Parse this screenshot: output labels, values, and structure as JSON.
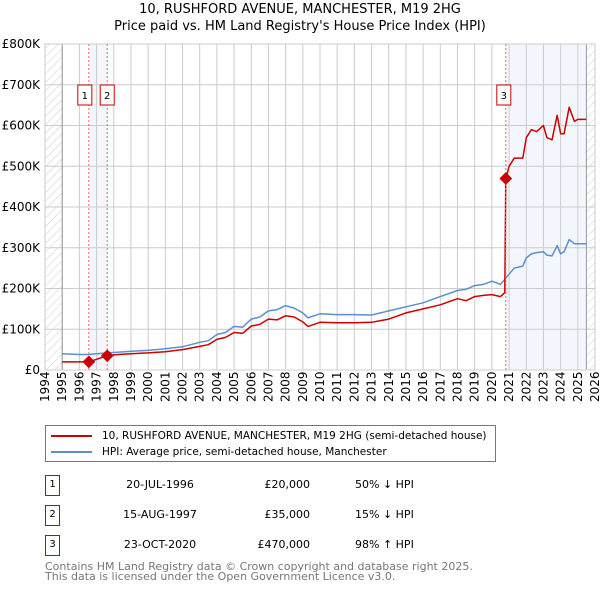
{
  "chart_data": {
    "type": "line",
    "title": "10, RUSHFORD AVENUE, MANCHESTER, M19 2HG",
    "subtitle": "Price paid vs. HM Land Registry's House Price Index (HPI)",
    "xlim": [
      1994,
      2026
    ],
    "ylim": [
      0,
      800000
    ],
    "x_ticks": [
      "1994",
      "1995",
      "1996",
      "1997",
      "1998",
      "1999",
      "2000",
      "2001",
      "2002",
      "2003",
      "2004",
      "2005",
      "2006",
      "2007",
      "2008",
      "2009",
      "2010",
      "2011",
      "2012",
      "2013",
      "2014",
      "2015",
      "2016",
      "2017",
      "2018",
      "2019",
      "2020",
      "2021",
      "2022",
      "2023",
      "2024",
      "2025",
      "2026"
    ],
    "y_ticks": [
      {
        "v": 0,
        "label": "£0"
      },
      {
        "v": 100000,
        "label": "£100K"
      },
      {
        "v": 200000,
        "label": "£200K"
      },
      {
        "v": 300000,
        "label": "£300K"
      },
      {
        "v": 400000,
        "label": "£400K"
      },
      {
        "v": 500000,
        "label": "£500K"
      },
      {
        "v": 600000,
        "label": "£600K"
      },
      {
        "v": 700000,
        "label": "£700K"
      },
      {
        "v": 800000,
        "label": "£800K"
      }
    ],
    "grid": true,
    "data_range": [
      1995,
      2025.5
    ],
    "series": [
      {
        "name": "10, RUSHFORD AVENUE, MANCHESTER, M19 2HG (semi-detached house)",
        "color": "#cc0000",
        "x": [
          1995,
          1996.55,
          1997.62,
          1998,
          1999,
          2000,
          2001,
          2002,
          2003,
          2003.5,
          2004,
          2004.5,
          2005,
          2005.5,
          2006,
          2006.5,
          2007,
          2007.5,
          2008,
          2008.5,
          2009,
          2009.3,
          2010,
          2011,
          2012,
          2013,
          2014,
          2015,
          2016,
          2017,
          2018,
          2018.5,
          2019,
          2019.5,
          2020,
          2020.5,
          2020.75,
          2020.81,
          2021,
          2021.3,
          2021.8,
          2022,
          2022.3,
          2022.6,
          2023,
          2023.2,
          2023.5,
          2023.8,
          2024,
          2024.2,
          2024.5,
          2024.8,
          2025,
          2025.5
        ],
        "y": [
          20000,
          20000,
          35000,
          37000,
          40000,
          42000,
          45000,
          50000,
          58000,
          62000,
          75000,
          80000,
          92000,
          90000,
          108000,
          112000,
          125000,
          123000,
          133000,
          130000,
          118000,
          107000,
          117000,
          116000,
          116000,
          117000,
          125000,
          140000,
          150000,
          160000,
          175000,
          170000,
          180000,
          183000,
          185000,
          180000,
          190000,
          470000,
          500000,
          520000,
          520000,
          570000,
          590000,
          585000,
          600000,
          570000,
          565000,
          625000,
          580000,
          580000,
          645000,
          610000,
          615000,
          615000
        ]
      },
      {
        "name": "HPI: Average price, semi-detached house, Manchester",
        "color": "#5b8fd4",
        "x": [
          1995,
          1996,
          1996.5,
          1997,
          1998,
          1999,
          2000,
          2001,
          2002,
          2003,
          2003.5,
          2004,
          2004.5,
          2005,
          2005.5,
          2006,
          2006.5,
          2007,
          2007.5,
          2008,
          2008.5,
          2009,
          2009.3,
          2010,
          2011,
          2012,
          2013,
          2014,
          2015,
          2016,
          2017,
          2018,
          2018.5,
          2019,
          2019.5,
          2020,
          2020.5,
          2020.8,
          2021,
          2021.3,
          2021.8,
          2022,
          2022.3,
          2022.6,
          2023,
          2023.2,
          2023.5,
          2023.8,
          2024,
          2024.2,
          2024.5,
          2024.8,
          2025,
          2025.5
        ],
        "y": [
          40000,
          38000,
          38000,
          40000,
          43000,
          46000,
          48000,
          52000,
          57000,
          68000,
          72000,
          87000,
          92000,
          107000,
          105000,
          125000,
          130000,
          145000,
          148000,
          158000,
          152000,
          140000,
          128000,
          138000,
          136000,
          136000,
          135000,
          145000,
          155000,
          165000,
          180000,
          195000,
          198000,
          207000,
          210000,
          218000,
          210000,
          225000,
          235000,
          250000,
          255000,
          275000,
          285000,
          288000,
          290000,
          282000,
          280000,
          305000,
          285000,
          290000,
          320000,
          310000,
          310000,
          310000
        ]
      }
    ],
    "annotations": [
      {
        "id": "1",
        "x": 1996.55,
        "y": 20000
      },
      {
        "id": "2",
        "x": 1997.62,
        "y": 35000
      },
      {
        "id": "3",
        "x": 2020.81,
        "y": 470000
      }
    ]
  },
  "legend": {
    "property": "10, RUSHFORD AVENUE, MANCHESTER, M19 2HG (semi-detached house)",
    "hpi": "HPI: Average price, semi-detached house, Manchester"
  },
  "transactions": [
    {
      "num": "1",
      "date": "20-JUL-1996",
      "price": "£20,000",
      "hpi": "50% ↓ HPI"
    },
    {
      "num": "2",
      "date": "15-AUG-1997",
      "price": "£35,000",
      "hpi": "15% ↓ HPI"
    },
    {
      "num": "3",
      "date": "23-OCT-2020",
      "price": "£470,000",
      "hpi": "98% ↑ HPI"
    }
  ],
  "footer": {
    "line1": "Contains HM Land Registry data © Crown copyright and database right 2025.",
    "line2": "This data is licensed under the Open Government Licence v3.0."
  }
}
